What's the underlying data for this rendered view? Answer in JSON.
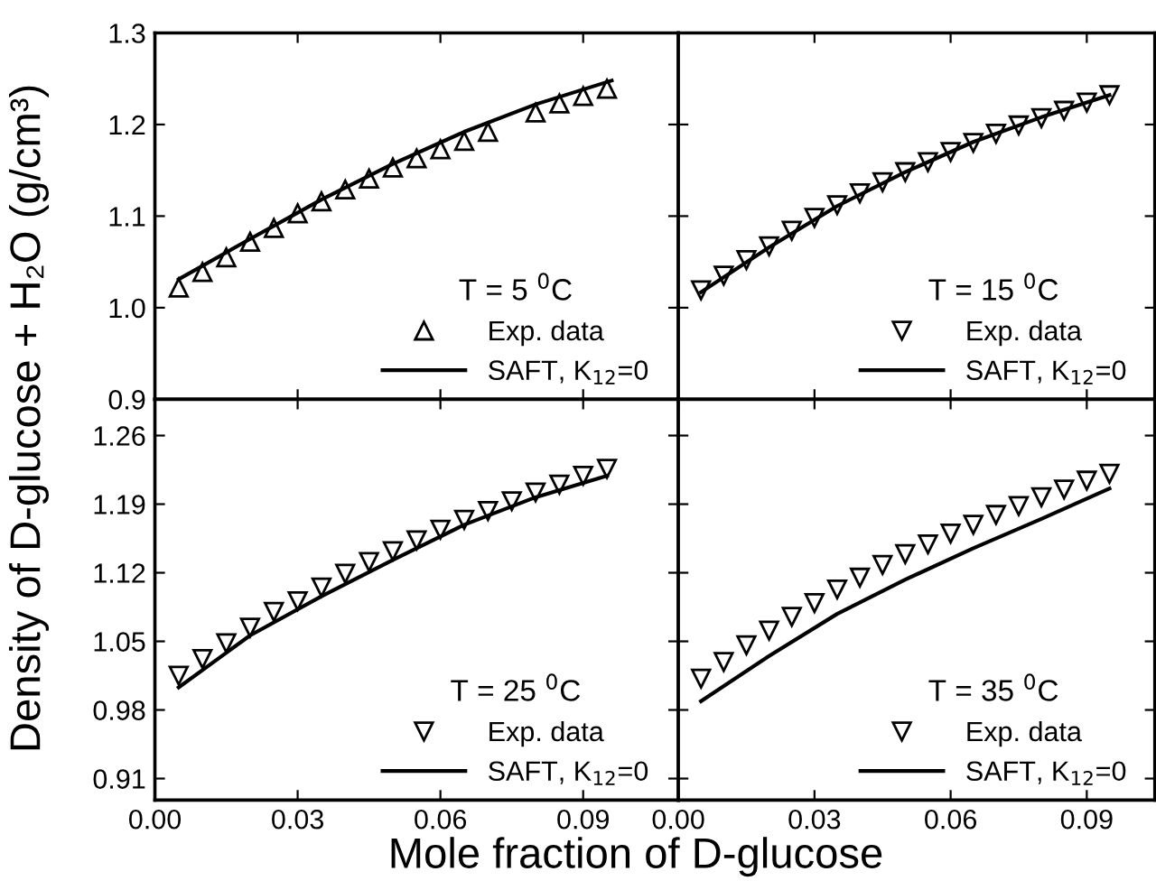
{
  "chart_data": [
    {
      "type": "scatter",
      "ylabel": "Density of D-glucose + H₂O (g/cm³)",
      "legend_title": "T = 5 $^{0}$C",
      "legend": "bottom right",
      "xlim": [
        0,
        0.11
      ],
      "ylim": [
        0.9,
        1.3
      ],
      "xticks": [
        0.0,
        0.03,
        0.06,
        0.09
      ],
      "yticks": [
        {
          "value": 0.9,
          "label": "0.9"
        },
        {
          "value": 1.0,
          "label": "1.0"
        },
        1.1,
        1.2,
        1.3
      ],
      "tick_labels": "y",
      "series": [
        {
          "name": "Exp. data",
          "marker": "triangle",
          "color": "#000000",
          "x": [
            0.005,
            0.01,
            0.015,
            0.02,
            0.025,
            0.03,
            0.035,
            0.04,
            0.045,
            0.05,
            0.055,
            0.06,
            0.065,
            0.07,
            0.08,
            0.085,
            0.09,
            0.095
          ],
          "values": [
            1.022,
            1.039,
            1.055,
            1.072,
            1.087,
            1.103,
            1.116,
            1.129,
            1.141,
            1.153,
            1.163,
            1.173,
            1.182,
            1.192,
            1.213,
            1.223,
            1.231,
            1.239
          ]
        },
        {
          "name": "SAFT, K$_{12}$=0",
          "type": "line",
          "marker": "none",
          "color": "#000000",
          "x": [
            0.005,
            0.02,
            0.035,
            0.05,
            0.065,
            0.08,
            0.096
          ],
          "values": [
            1.031,
            1.075,
            1.118,
            1.157,
            1.192,
            1.222,
            1.248
          ]
        }
      ]
    },
    {
      "type": "scatter",
      "legend_title": "T = 15 $^{0}$C",
      "legend": "bottom right",
      "xlim": [
        0,
        0.105
      ],
      "ylim": [
        0.9,
        1.3
      ],
      "xticks": [
        0.0,
        0.03,
        0.06,
        0.09
      ],
      "yticks": [
        0.9,
        1.0,
        1.1,
        1.2,
        1.3
      ],
      "tick_labels": false,
      "series": [
        {
          "name": "Exp. data",
          "marker": "triangle-down",
          "color": "#000000",
          "x": [
            0.005,
            0.01,
            0.015,
            0.02,
            0.025,
            0.03,
            0.035,
            0.04,
            0.045,
            0.05,
            0.055,
            0.06,
            0.065,
            0.07,
            0.075,
            0.08,
            0.085,
            0.09,
            0.095
          ],
          "values": [
            1.019,
            1.035,
            1.052,
            1.067,
            1.084,
            1.098,
            1.112,
            1.125,
            1.137,
            1.148,
            1.159,
            1.17,
            1.18,
            1.19,
            1.199,
            1.207,
            1.215,
            1.224,
            1.232
          ]
        },
        {
          "name": "SAFT, K$_{12}$=0",
          "type": "line",
          "marker": "none",
          "color": "#000000",
          "x": [
            0.005,
            0.02,
            0.035,
            0.05,
            0.065,
            0.08,
            0.095
          ],
          "values": [
            1.017,
            1.066,
            1.111,
            1.148,
            1.181,
            1.208,
            1.232
          ]
        }
      ]
    },
    {
      "type": "scatter",
      "xlabel": "Mole fraction of D-glucose",
      "legend_title": "T = 25 $^{0}$C",
      "legend": "bottom right",
      "xlim": [
        0,
        0.11
      ],
      "ylim": [
        0.888,
        1.297
      ],
      "xticks": [
        {
          "value": 0.0,
          "label": "0.00"
        },
        0.03,
        0.06,
        0.09
      ],
      "yticks": [
        0.91,
        0.98,
        1.05,
        1.12,
        1.19,
        1.26
      ],
      "series": [
        {
          "name": "Exp. data",
          "marker": "triangle-down",
          "color": "#000000",
          "x": [
            0.005,
            0.01,
            0.015,
            0.02,
            0.025,
            0.03,
            0.035,
            0.04,
            0.045,
            0.05,
            0.055,
            0.06,
            0.065,
            0.07,
            0.075,
            0.08,
            0.085,
            0.09,
            0.095
          ],
          "values": [
            1.015,
            1.032,
            1.048,
            1.064,
            1.08,
            1.091,
            1.105,
            1.119,
            1.131,
            1.142,
            1.153,
            1.164,
            1.174,
            1.183,
            1.193,
            1.202,
            1.21,
            1.219,
            1.226
          ]
        },
        {
          "name": "SAFT, K$_{12}$=0",
          "type": "line",
          "marker": "none",
          "color": "#000000",
          "x": [
            0.005,
            0.02,
            0.035,
            0.05,
            0.065,
            0.08,
            0.095
          ],
          "values": [
            1.003,
            1.056,
            1.096,
            1.133,
            1.169,
            1.197,
            1.219
          ]
        }
      ]
    },
    {
      "type": "scatter",
      "legend_title": "T = 35 $^{0}$C",
      "legend": "bottom right",
      "xlim": [
        0,
        0.105
      ],
      "ylim": [
        0.888,
        1.297
      ],
      "xticks": [
        {
          "value": 0.0,
          "label": "0.00"
        },
        0.03,
        0.06,
        0.09
      ],
      "yticks": [
        0.91,
        0.98,
        1.05,
        1.12,
        1.19,
        1.26
      ],
      "tick_labels": "x",
      "series": [
        {
          "name": "Exp. data",
          "marker": "triangle-down",
          "color": "#000000",
          "x": [
            0.005,
            0.01,
            0.015,
            0.02,
            0.025,
            0.03,
            0.035,
            0.04,
            0.045,
            0.05,
            0.055,
            0.06,
            0.065,
            0.07,
            0.075,
            0.08,
            0.085,
            0.09,
            0.095
          ],
          "values": [
            1.012,
            1.029,
            1.046,
            1.061,
            1.075,
            1.089,
            1.103,
            1.115,
            1.128,
            1.139,
            1.149,
            1.16,
            1.169,
            1.179,
            1.188,
            1.197,
            1.205,
            1.214,
            1.221
          ]
        },
        {
          "name": "SAFT, K$_{12}$=0",
          "type": "line",
          "marker": "none",
          "color": "#000000",
          "x": [
            0.005,
            0.02,
            0.035,
            0.05,
            0.065,
            0.08,
            0.095
          ],
          "values": [
            0.989,
            1.035,
            1.078,
            1.113,
            1.145,
            1.175,
            1.206
          ]
        }
      ]
    }
  ]
}
